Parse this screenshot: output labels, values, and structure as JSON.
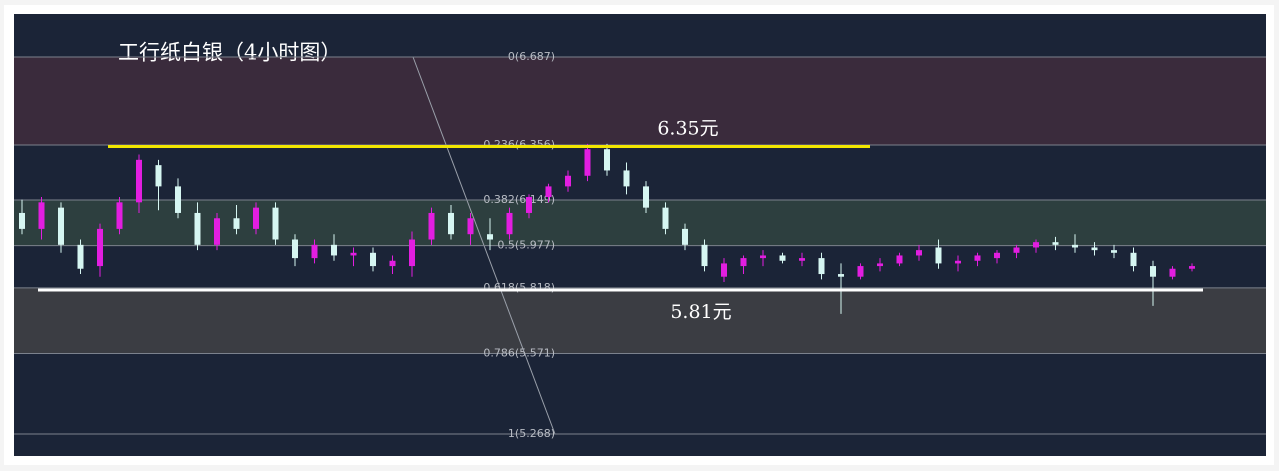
{
  "chart_data": {
    "type": "candlestick",
    "title": "工行纸白银（4小时图）",
    "ylim": [
      5.185,
      6.849
    ],
    "up_color": "#e21ee0",
    "down_color": "#d6f6f2",
    "fib_levels": [
      {
        "value": 6.687,
        "label": "0(6.687)"
      },
      {
        "value": 6.356,
        "label": "0.236(6.356)"
      },
      {
        "value": 6.149,
        "label": "0.382(6.149)"
      },
      {
        "value": 5.977,
        "label": "0.5(5.977)"
      },
      {
        "value": 5.818,
        "label": "0.618(5.818)"
      },
      {
        "value": 5.571,
        "label": "0.786(5.571)"
      },
      {
        "value": 5.268,
        "label": "1(5.268)"
      }
    ],
    "annotations": [
      {
        "text": "6.35元",
        "value": 6.35,
        "color": "#f2e600"
      },
      {
        "text": "5.81元",
        "value": 5.81,
        "color": "#ffffff"
      }
    ],
    "open": [
      6.1,
      6.04,
      6.12,
      5.98,
      5.9,
      6.04,
      6.14,
      6.28,
      6.2,
      6.1,
      5.98,
      6.08,
      6.04,
      6.12,
      6.0,
      5.93,
      5.98,
      5.94,
      5.95,
      5.9,
      5.9,
      6.0,
      6.1,
      6.02,
      6.02,
      6.02,
      6.1,
      6.16,
      6.2,
      6.24,
      6.34,
      6.26,
      6.2,
      6.12,
      6.04,
      5.98,
      5.86,
      5.9,
      5.93,
      5.94,
      5.92,
      5.93,
      5.87,
      5.86,
      5.9,
      5.91,
      5.94,
      5.97,
      5.91,
      5.92,
      5.93,
      5.95,
      5.97,
      5.99,
      5.98,
      5.97,
      5.96,
      5.95,
      5.9,
      5.86,
      5.89
    ],
    "high": [
      6.15,
      6.16,
      6.14,
      6.0,
      6.06,
      6.16,
      6.32,
      6.3,
      6.23,
      6.14,
      6.1,
      6.13,
      6.14,
      6.14,
      6.02,
      6.0,
      6.02,
      5.97,
      5.97,
      5.94,
      6.03,
      6.12,
      6.13,
      6.1,
      6.08,
      6.12,
      6.17,
      6.21,
      6.26,
      6.36,
      6.36,
      6.29,
      6.22,
      6.14,
      6.06,
      6.0,
      5.93,
      5.94,
      5.96,
      5.95,
      5.95,
      5.95,
      5.91,
      5.91,
      5.93,
      5.95,
      5.98,
      6.0,
      5.94,
      5.95,
      5.96,
      5.98,
      6.0,
      6.01,
      6.02,
      5.99,
      5.98,
      5.97,
      5.92,
      5.9,
      5.91
    ],
    "low": [
      6.02,
      6.0,
      5.95,
      5.87,
      5.86,
      6.02,
      6.1,
      6.11,
      6.08,
      5.96,
      5.96,
      6.02,
      6.02,
      5.98,
      5.9,
      5.91,
      5.92,
      5.9,
      5.88,
      5.87,
      5.86,
      5.98,
      6.0,
      5.98,
      5.96,
      6.0,
      6.08,
      6.14,
      6.18,
      6.22,
      6.24,
      6.17,
      6.1,
      6.02,
      5.96,
      5.88,
      5.84,
      5.87,
      5.9,
      5.91,
      5.9,
      5.85,
      5.72,
      5.85,
      5.88,
      5.9,
      5.92,
      5.89,
      5.88,
      5.9,
      5.91,
      5.93,
      5.95,
      5.96,
      5.95,
      5.94,
      5.93,
      5.88,
      5.75,
      5.85,
      5.88
    ],
    "close": [
      6.04,
      6.14,
      5.98,
      5.89,
      6.04,
      6.14,
      6.3,
      6.2,
      6.1,
      5.98,
      6.08,
      6.04,
      6.12,
      6.0,
      5.93,
      5.98,
      5.94,
      5.95,
      5.9,
      5.92,
      6.0,
      6.1,
      6.02,
      6.08,
      6.0,
      6.1,
      6.16,
      6.2,
      6.24,
      6.34,
      6.26,
      6.2,
      6.12,
      6.04,
      5.98,
      5.9,
      5.91,
      5.93,
      5.94,
      5.92,
      5.93,
      5.87,
      5.86,
      5.9,
      5.91,
      5.94,
      5.96,
      5.91,
      5.92,
      5.94,
      5.95,
      5.97,
      5.99,
      5.98,
      5.97,
      5.96,
      5.95,
      5.9,
      5.86,
      5.89,
      5.9
    ]
  }
}
